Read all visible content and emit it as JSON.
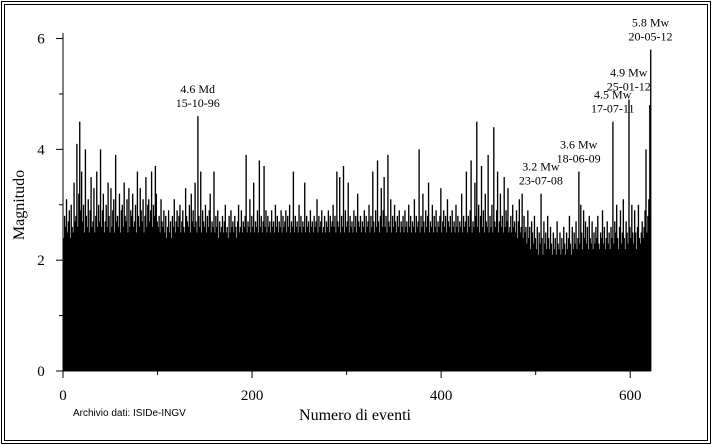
{
  "chart_data": {
    "type": "bar",
    "xlabel": "Numero di eventi",
    "ylabel": "Magnitudo",
    "source": "Archivio dati: ISIDe-INGV",
    "color": "#000000",
    "xlim": [
      0,
      622
    ],
    "ylim": [
      0,
      6.1
    ],
    "xticks": [
      0,
      200,
      400,
      600
    ],
    "yticks": [
      0,
      2,
      4,
      6
    ],
    "xminor": [
      100,
      300,
      500
    ],
    "yminor": [
      1,
      3,
      5
    ],
    "values": [
      2.4,
      2.8,
      2.6,
      3.1,
      2.5,
      2.7,
      2.9,
      2.4,
      3.0,
      2.6,
      2.5,
      3.4,
      2.7,
      2.8,
      4.1,
      2.6,
      3.2,
      4.5,
      2.9,
      3.6,
      2.7,
      3.0,
      2.5,
      4.0,
      2.8,
      2.6,
      3.1,
      2.5,
      2.9,
      3.5,
      2.6,
      2.7,
      3.3,
      2.5,
      2.8,
      3.6,
      2.6,
      3.0,
      2.7,
      4.0,
      2.6,
      2.9,
      3.2,
      2.5,
      2.7,
      3.0,
      2.6,
      3.4,
      2.8,
      2.5,
      3.3,
      2.6,
      2.9,
      3.1,
      2.5,
      3.9,
      2.7,
      2.8,
      2.6,
      3.2,
      2.5,
      2.9,
      3.0,
      2.6,
      3.4,
      2.8,
      2.7,
      3.1,
      2.5,
      3.3,
      2.6,
      2.9,
      2.8,
      3.2,
      2.6,
      2.7,
      3.0,
      2.5,
      3.6,
      2.8,
      2.6,
      3.3,
      2.9,
      2.7,
      3.1,
      2.5,
      2.8,
      3.5,
      2.6,
      3.0,
      3.1,
      2.7,
      2.9,
      3.6,
      2.6,
      3.0,
      2.8,
      3.7,
      3.2,
      2.7,
      2.6,
      2.8,
      2.5,
      3.1,
      2.7,
      2.6,
      2.9,
      2.5,
      2.8,
      2.4,
      2.6,
      2.9,
      2.5,
      2.7,
      2.4,
      2.8,
      2.6,
      3.1,
      2.5,
      2.7,
      2.9,
      2.6,
      2.8,
      3.0,
      2.5,
      2.7,
      2.9,
      2.6,
      2.5,
      3.3,
      2.8,
      2.7,
      2.6,
      3.0,
      2.5,
      3.2,
      2.7,
      2.9,
      2.6,
      3.4,
      2.7,
      2.5,
      4.6,
      2.8,
      2.6,
      3.6,
      2.5,
      2.9,
      2.7,
      2.6,
      3.0,
      2.5,
      2.8,
      2.6,
      2.9,
      3.2,
      2.5,
      2.7,
      2.6,
      3.6,
      2.5,
      2.8,
      2.6,
      2.9,
      2.4,
      2.7,
      2.5,
      2.6,
      2.8,
      2.5,
      2.7,
      3.0,
      2.5,
      2.6,
      2.4,
      2.8,
      2.5,
      2.9,
      2.6,
      2.7,
      2.5,
      2.8,
      2.6,
      2.4,
      2.7,
      3.0,
      2.5,
      2.6,
      2.9,
      2.5,
      2.7,
      2.6,
      2.8,
      3.9,
      2.5,
      2.7,
      2.6,
      3.1,
      2.5,
      2.8,
      2.6,
      3.4,
      2.5,
      2.7,
      2.6,
      2.9,
      2.5,
      3.8,
      2.6,
      2.8,
      2.5,
      2.7,
      3.7,
      2.6,
      2.9,
      2.5,
      2.8,
      2.6,
      2.7,
      2.5,
      2.9,
      2.6,
      2.7,
      2.5,
      3.0,
      2.6,
      2.8,
      2.5,
      2.7,
      2.6,
      2.9,
      2.5,
      2.8,
      2.6,
      2.7,
      2.9,
      2.5,
      2.8,
      2.6,
      3.0,
      2.5,
      2.7,
      2.6,
      3.6,
      2.5,
      2.8,
      2.6,
      2.7,
      2.5,
      3.0,
      2.6,
      2.8,
      2.5,
      2.7,
      2.6,
      3.4,
      2.5,
      2.8,
      2.6,
      2.7,
      2.5,
      2.9,
      2.6,
      2.7,
      2.5,
      2.8,
      2.6,
      2.7,
      3.1,
      2.5,
      2.8,
      2.6,
      2.7,
      2.9,
      2.5,
      2.6,
      2.8,
      2.5,
      2.7,
      2.6,
      2.9,
      2.5,
      2.8,
      2.6,
      2.7,
      3.0,
      2.6,
      2.8,
      2.5,
      3.6,
      2.7,
      2.6,
      3.5,
      2.5,
      2.8,
      2.6,
      3.7,
      2.5,
      2.9,
      2.6,
      2.7,
      3.4,
      2.5,
      2.8,
      2.6,
      2.7,
      2.5,
      2.9,
      2.6,
      2.8,
      2.5,
      3.2,
      2.7,
      2.6,
      2.8,
      2.5,
      2.7,
      2.6,
      2.9,
      2.5,
      2.8,
      2.6,
      2.7,
      3.0,
      2.5,
      2.8,
      2.6,
      3.6,
      2.7,
      2.5,
      2.9,
      2.6,
      3.8,
      2.7,
      2.5,
      2.8,
      3.3,
      2.6,
      2.9,
      3.5,
      2.6,
      2.8,
      2.5,
      3.9,
      2.7,
      2.6,
      3.1,
      2.5,
      2.8,
      2.6,
      3.0,
      2.7,
      2.5,
      2.8,
      2.6,
      2.9,
      2.5,
      2.7,
      2.6,
      2.8,
      2.5,
      2.9,
      2.6,
      2.7,
      2.5,
      3.0,
      2.6,
      2.8,
      2.5,
      2.7,
      2.6,
      3.1,
      2.5,
      2.8,
      2.6,
      2.7,
      4.0,
      2.5,
      2.8,
      2.6,
      3.2,
      2.7,
      2.5,
      2.9,
      2.6,
      2.8,
      3.4,
      2.5,
      2.7,
      2.6,
      3.0,
      2.5,
      2.8,
      2.6,
      2.9,
      2.5,
      2.7,
      2.6,
      2.8,
      3.3,
      2.5,
      2.7,
      2.9,
      2.6,
      2.8,
      2.5,
      3.1,
      2.7,
      2.6,
      2.8,
      2.5,
      2.9,
      2.6,
      2.7,
      2.5,
      3.0,
      2.6,
      2.8,
      2.5,
      2.7,
      2.6,
      3.2,
      2.5,
      2.8,
      2.6,
      2.7,
      3.6,
      2.5,
      2.8,
      2.6,
      2.9,
      3.8,
      2.5,
      2.7,
      2.6,
      3.4,
      2.8,
      4.5,
      2.6,
      3.0,
      2.5,
      2.8,
      3.7,
      2.6,
      2.9,
      2.5,
      3.2,
      2.7,
      2.6,
      3.9,
      2.5,
      2.8,
      2.6,
      3.0,
      2.5,
      4.4,
      2.7,
      2.6,
      2.9,
      3.6,
      2.5,
      2.7,
      3.2,
      2.6,
      2.8,
      2.5,
      3.5,
      2.6,
      2.9,
      2.7,
      3.3,
      2.5,
      2.6,
      2.8,
      2.5,
      3.0,
      2.6,
      2.7,
      2.5,
      2.9,
      2.4,
      2.7,
      3.1,
      2.5,
      2.6,
      3.2,
      2.4,
      2.8,
      2.5,
      2.6,
      2.3,
      2.9,
      2.4,
      2.6,
      2.2,
      2.7,
      2.5,
      2.3,
      2.8,
      2.4,
      2.2,
      2.6,
      2.1,
      2.5,
      2.3,
      3.2,
      2.4,
      2.1,
      2.7,
      2.3,
      2.5,
      2.2,
      2.8,
      2.4,
      2.2,
      2.6,
      2.3,
      2.1,
      2.5,
      2.2,
      2.4,
      2.1,
      2.7,
      2.3,
      2.2,
      2.5,
      2.1,
      2.4,
      2.2,
      2.6,
      2.3,
      2.1,
      2.5,
      2.2,
      2.4,
      2.8,
      2.3,
      2.1,
      2.6,
      2.2,
      2.5,
      2.3,
      2.7,
      2.2,
      2.4,
      3.6,
      2.3,
      3.0,
      2.5,
      2.2,
      2.9,
      2.4,
      2.7,
      2.3,
      2.6,
      2.2,
      2.8,
      2.4,
      2.3,
      2.7,
      2.2,
      2.5,
      2.3,
      2.6,
      2.4,
      2.8,
      2.3,
      2.2,
      2.5,
      2.4,
      2.9,
      2.3,
      2.6,
      2.2,
      2.4,
      2.7,
      2.3,
      2.5,
      2.2,
      2.6,
      2.4,
      4.5,
      2.3,
      2.7,
      2.5,
      3.0,
      2.4,
      2.2,
      2.6,
      2.9,
      2.3,
      2.5,
      3.1,
      2.4,
      2.2,
      2.7,
      2.5,
      2.3,
      4.9,
      2.6,
      2.4,
      3.0,
      2.5,
      2.3,
      2.9,
      2.5,
      2.2,
      2.6,
      3.0,
      2.4,
      2.3,
      2.5,
      2.7,
      2.4,
      2.6,
      2.9,
      4.0,
      2.5,
      2.8,
      3.1,
      4.8,
      5.8
    ],
    "annotations": [
      {
        "index": 142,
        "lines": [
          "4.6 Md",
          "15-10-96"
        ]
      },
      {
        "index": 505,
        "lines": [
          "3.2 Mw",
          "23-07-08"
        ]
      },
      {
        "index": 545,
        "lines": [
          "3.6 Mw",
          "18-06-09"
        ]
      },
      {
        "index": 581,
        "lines": [
          "4.5 Mw",
          "17-07-11"
        ]
      },
      {
        "index": 598,
        "lines": [
          "4.9 Mw",
          "25-01-12"
        ]
      },
      {
        "index": 621,
        "lines": [
          "5.8 Mw",
          "20-05-12"
        ]
      }
    ]
  }
}
